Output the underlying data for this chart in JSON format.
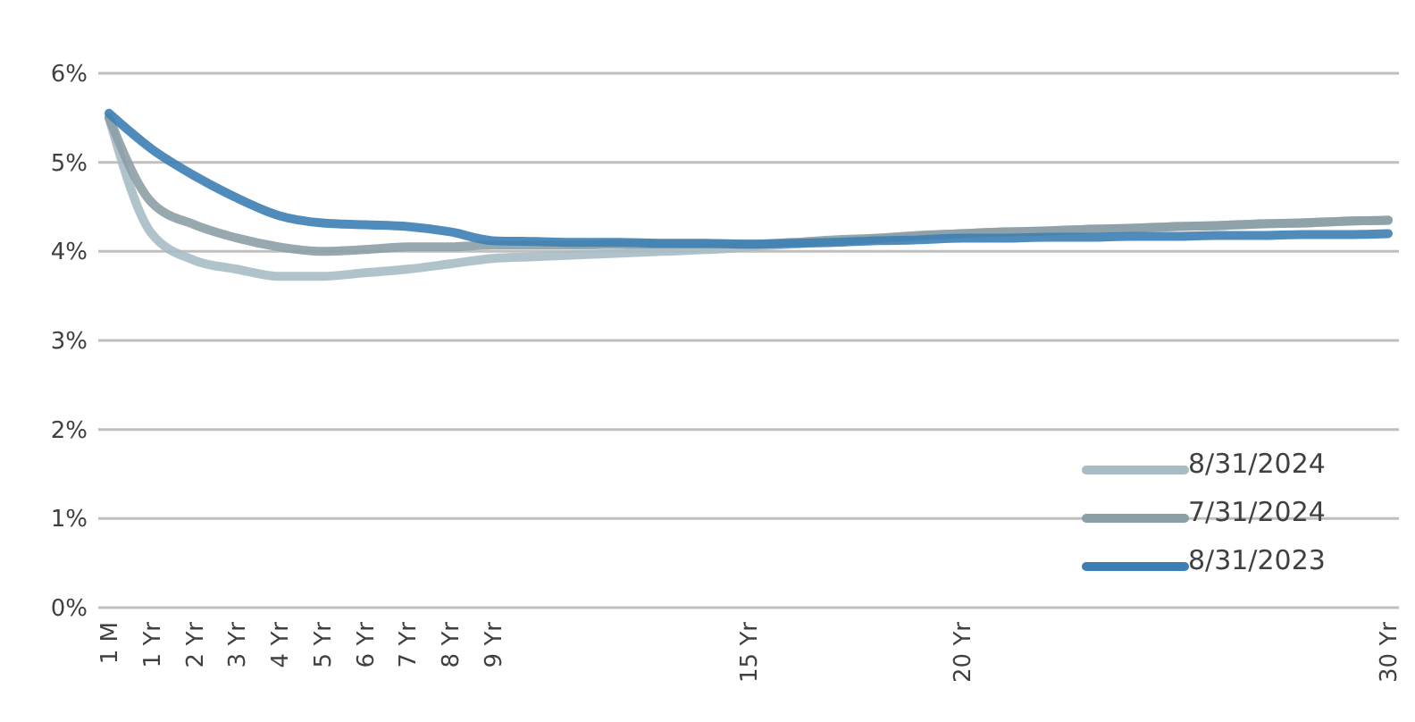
{
  "chart_data": {
    "type": "line",
    "categories": [
      "1 M",
      "1 Yr",
      "2 Yr",
      "3 Yr",
      "4 Yr",
      "5 Yr",
      "6 Yr",
      "7 Yr",
      "8 Yr",
      "9 Yr",
      null,
      null,
      null,
      null,
      null,
      "15 Yr",
      null,
      null,
      null,
      null,
      "20 Yr",
      null,
      null,
      null,
      null,
      null,
      null,
      null,
      null,
      null,
      "30 Yr"
    ],
    "series": [
      {
        "name": "8/31/2024",
        "color": "#a9bcc4",
        "values": [
          5.5,
          4.2,
          3.9,
          3.8,
          3.72,
          3.72,
          3.76,
          3.8,
          3.86,
          3.92,
          3.94,
          3.96,
          3.98,
          4.0,
          4.02,
          4.05,
          4.08,
          4.11,
          4.14,
          4.17,
          4.2,
          4.22,
          4.23,
          4.25,
          4.26,
          4.28,
          4.29,
          4.31,
          4.32,
          4.34,
          4.35
        ]
      },
      {
        "name": "7/31/2024",
        "color": "#8c9ea6",
        "values": [
          5.5,
          4.55,
          4.3,
          4.15,
          4.05,
          4.0,
          4.02,
          4.05,
          4.05,
          4.07,
          4.07,
          4.07,
          4.08,
          4.08,
          4.08,
          4.08,
          4.1,
          4.13,
          4.15,
          4.18,
          4.2,
          4.22,
          4.23,
          4.25,
          4.26,
          4.28,
          4.29,
          4.31,
          4.32,
          4.34,
          4.35
        ]
      },
      {
        "name": "8/31/2023",
        "color": "#3d7fb4",
        "values": [
          5.55,
          5.15,
          4.85,
          4.6,
          4.4,
          4.32,
          4.3,
          4.28,
          4.22,
          4.12,
          4.11,
          4.1,
          4.1,
          4.09,
          4.09,
          4.08,
          4.09,
          4.1,
          4.12,
          4.13,
          4.15,
          4.15,
          4.16,
          4.16,
          4.17,
          4.17,
          4.18,
          4.18,
          4.19,
          4.19,
          4.2
        ]
      }
    ],
    "ylim": [
      0,
      6
    ],
    "yticks": [
      {
        "value": 0,
        "label": "0%"
      },
      {
        "value": 1,
        "label": "1%"
      },
      {
        "value": 2,
        "label": "2%"
      },
      {
        "value": 3,
        "label": "3%"
      },
      {
        "value": 4,
        "label": "4%"
      },
      {
        "value": 5,
        "label": "5%"
      },
      {
        "value": 6,
        "label": "6%"
      }
    ],
    "grid": "y",
    "legend": "bottom right",
    "marker": "none",
    "line_style": "solid"
  }
}
